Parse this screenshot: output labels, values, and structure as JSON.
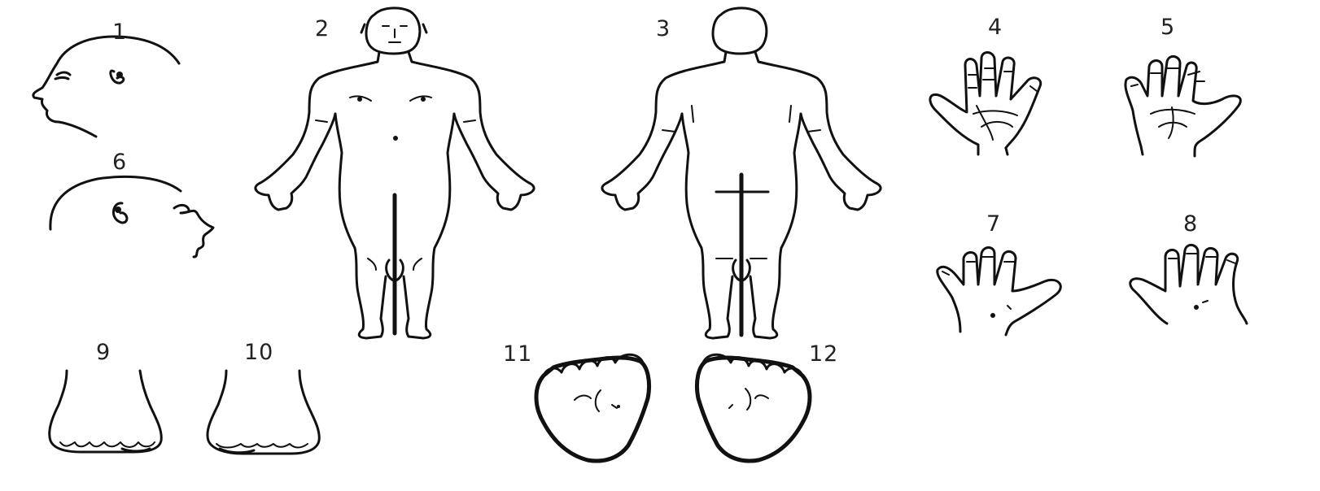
{
  "figure": {
    "ink_color": "#111111",
    "background": "#ffffff",
    "views": [
      {
        "id": "head-right",
        "label": "1",
        "icon": "head-profile-left-facing-icon"
      },
      {
        "id": "body-front",
        "label": "2",
        "icon": "body-front-icon"
      },
      {
        "id": "body-back",
        "label": "3",
        "icon": "body-back-icon"
      },
      {
        "id": "right-palm",
        "label": "4",
        "icon": "palm-icon"
      },
      {
        "id": "left-palm",
        "label": "5",
        "icon": "palm-icon"
      },
      {
        "id": "head-left",
        "label": "6",
        "icon": "head-profile-right-facing-icon"
      },
      {
        "id": "hand-back-1",
        "label": "7",
        "icon": "hand-back-icon"
      },
      {
        "id": "hand-back-2",
        "label": "8",
        "icon": "hand-back-icon"
      },
      {
        "id": "foot-top-1",
        "label": "9",
        "icon": "foot-top-icon"
      },
      {
        "id": "foot-top-2",
        "label": "10",
        "icon": "foot-top-icon"
      },
      {
        "id": "sole-1",
        "label": "11",
        "icon": "foot-sole-icon"
      },
      {
        "id": "sole-2",
        "label": "12",
        "icon": "foot-sole-icon"
      }
    ]
  }
}
